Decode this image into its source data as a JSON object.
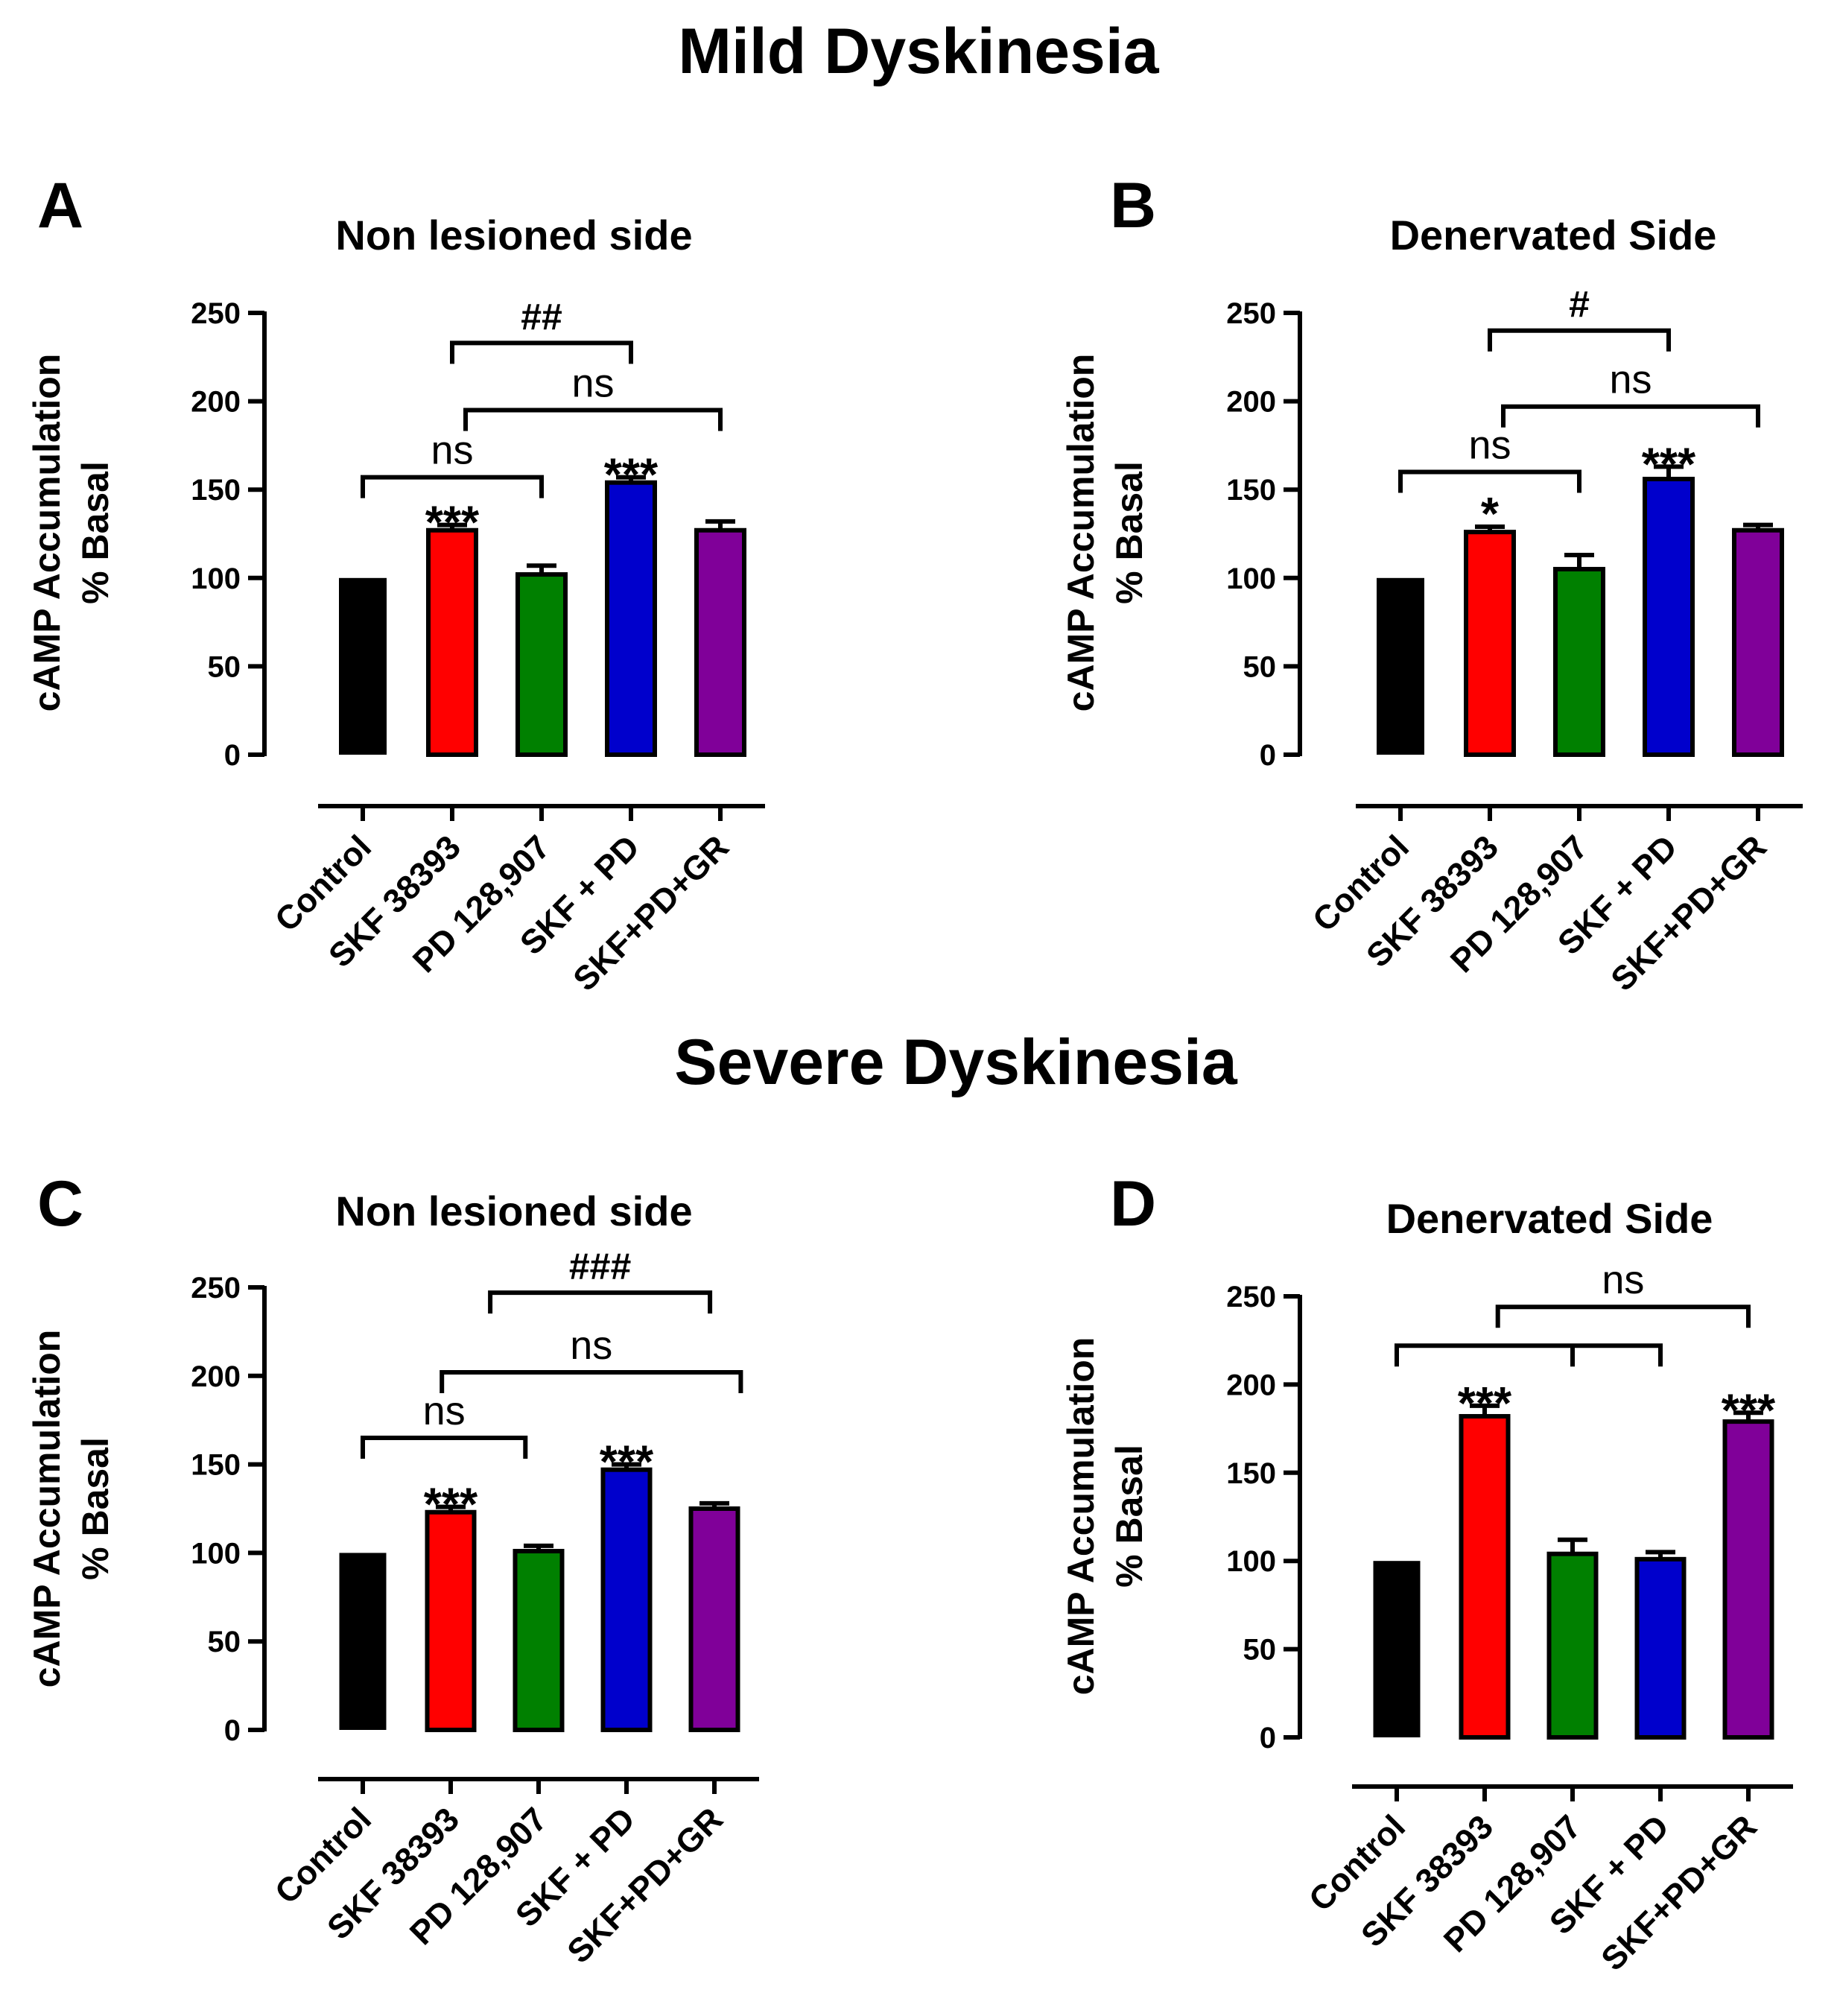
{
  "figure": {
    "section_titles": [
      "Mild Dyskinesia",
      "Severe Dyskinesia"
    ]
  },
  "chart_data": [
    {
      "panel": "A",
      "type": "bar",
      "title": "Non lesioned side",
      "xlabel": "",
      "ylabel_line1": "cAMP Accumulation",
      "ylabel_line2": "% Basal",
      "ylim": [
        0,
        250
      ],
      "yticks": [
        0,
        50,
        100,
        150,
        200,
        250
      ],
      "categories": [
        "Control",
        "SKF 38393",
        "PD 128,907",
        "SKF + PD",
        "SKF+PD+GR"
      ],
      "values": [
        100,
        127,
        102,
        154,
        127
      ],
      "errors": [
        0,
        3,
        5,
        3,
        5
      ],
      "colors": [
        "#000000",
        "#ff0000",
        "#008000",
        "#0000cc",
        "#800099"
      ],
      "bar_labels": [
        "",
        "***",
        "",
        "***",
        ""
      ],
      "brackets": [
        {
          "from": 0,
          "to": 2,
          "y": 157,
          "label": "ns"
        },
        {
          "from": 1,
          "to": 3,
          "y": 233,
          "label": "##"
        },
        {
          "from": 1.15,
          "to": 4,
          "y": 195,
          "label": "ns"
        }
      ]
    },
    {
      "panel": "B",
      "type": "bar",
      "title": "Denervated Side",
      "xlabel": "",
      "ylabel_line1": "cAMP Accumulation",
      "ylabel_line2": "% Basal",
      "ylim": [
        0,
        250
      ],
      "yticks": [
        0,
        50,
        100,
        150,
        200,
        250
      ],
      "categories": [
        "Control",
        "SKF 38393",
        "PD 128,907",
        "SKF + PD",
        "SKF+PD+GR"
      ],
      "values": [
        100,
        126,
        105,
        156,
        127
      ],
      "errors": [
        0,
        3,
        8,
        7,
        3
      ],
      "colors": [
        "#000000",
        "#ff0000",
        "#008000",
        "#0000cc",
        "#800099"
      ],
      "bar_labels": [
        "",
        "*",
        "",
        "***",
        ""
      ],
      "brackets": [
        {
          "from": 0,
          "to": 2,
          "y": 160,
          "label": "ns"
        },
        {
          "from": 1,
          "to": 3,
          "y": 240,
          "label": "#"
        },
        {
          "from": 1.15,
          "to": 4,
          "y": 197,
          "label": "ns"
        }
      ]
    },
    {
      "panel": "C",
      "type": "bar",
      "title": "Non lesioned side",
      "xlabel": "",
      "ylabel_line1": "cAMP Accumulation",
      "ylabel_line2": "% Basal",
      "ylim": [
        0,
        250
      ],
      "yticks": [
        0,
        50,
        100,
        150,
        200,
        250
      ],
      "categories": [
        "Control",
        "SKF 38393",
        "PD 128,907",
        "SKF + PD",
        "SKF+PD+GR"
      ],
      "values": [
        100,
        123,
        101,
        147,
        125
      ],
      "errors": [
        0,
        3,
        3,
        3,
        3
      ],
      "colors": [
        "#000000",
        "#ff0000",
        "#008000",
        "#0000cc",
        "#800099"
      ],
      "bar_labels": [
        "",
        "***",
        "",
        "***",
        ""
      ],
      "brackets": [
        {
          "from": 0,
          "to": 1.85,
          "y": 165,
          "label": "ns"
        },
        {
          "from": 1.45,
          "to": 3.95,
          "y": 247,
          "label": "###"
        },
        {
          "from": 0.9,
          "to": 4.3,
          "y": 202,
          "label": "ns"
        }
      ]
    },
    {
      "panel": "D",
      "type": "bar",
      "title": "Denervated Side",
      "xlabel": "",
      "ylabel_line1": "cAMP Accumulation",
      "ylabel_line2": "% Basal",
      "ylim": [
        0,
        250
      ],
      "yticks": [
        0,
        50,
        100,
        150,
        200,
        250
      ],
      "categories": [
        "Control",
        "SKF 38393",
        "PD 128,907",
        "SKF + PD",
        "SKF+PD+GR"
      ],
      "values": [
        100,
        182,
        104,
        101,
        179
      ],
      "errors": [
        0,
        6,
        8,
        4,
        5
      ],
      "colors": [
        "#000000",
        "#ff0000",
        "#008000",
        "#0000cc",
        "#800099"
      ],
      "bar_labels": [
        "",
        "***",
        "",
        "",
        "***"
      ],
      "brackets": [
        {
          "from": 0,
          "to": 3,
          "y": 222,
          "label": ""
        },
        {
          "from": 1.15,
          "to": 4,
          "y": 244,
          "label": "ns"
        }
      ]
    }
  ]
}
